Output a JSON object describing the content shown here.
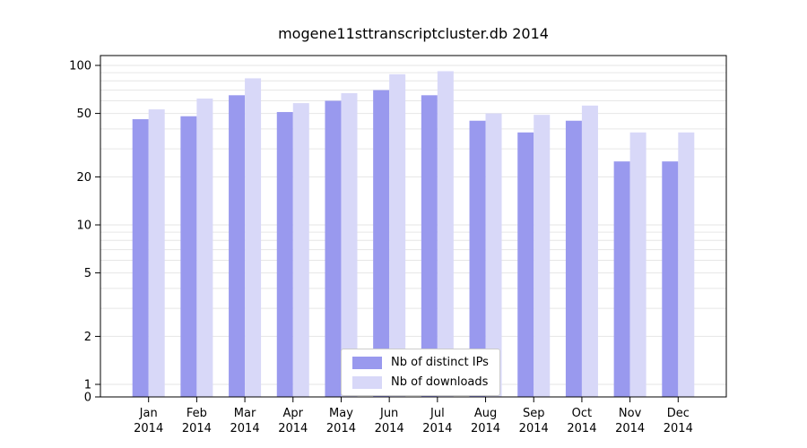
{
  "chart_data": {
    "type": "bar",
    "title": "mogene11sttranscriptcluster.db 2014",
    "categories": [
      "Jan",
      "Feb",
      "Mar",
      "Apr",
      "May",
      "Jun",
      "Jul",
      "Aug",
      "Sep",
      "Oct",
      "Nov",
      "Dec"
    ],
    "year": "2014",
    "series": [
      {
        "name": "Nb of distinct IPs",
        "color": "#9999ee",
        "values": [
          46,
          48,
          65,
          51,
          60,
          70,
          65,
          45,
          38,
          45,
          25,
          25
        ]
      },
      {
        "name": "Nb of downloads",
        "color": "#d8d8f8",
        "values": [
          53,
          62,
          83,
          58,
          67,
          88,
          92,
          50,
          49,
          56,
          38,
          38
        ]
      }
    ],
    "yticks": [
      0,
      1,
      2,
      5,
      10,
      20,
      50,
      100
    ],
    "yscale": "log",
    "ylim": [
      0,
      100
    ],
    "grid": true,
    "grid_color": "#e6e6e6",
    "axis_color": "#000000",
    "legend_position": "bottom-center"
  }
}
